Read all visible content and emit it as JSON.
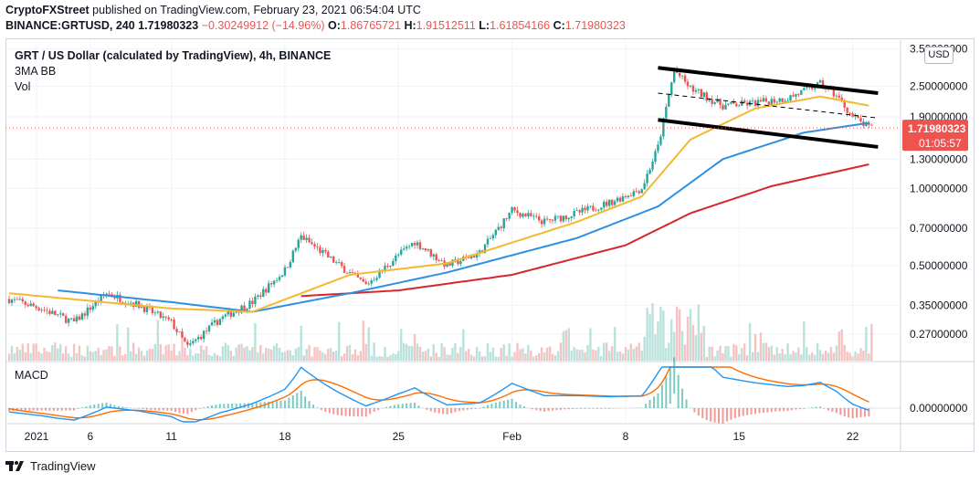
{
  "header": {
    "publisher": "CryptoFXStreet",
    "published_text": "published on TradingView.com, February 23, 2021 06:54:04 UTC"
  },
  "ohlc": {
    "symbol_line": "BINANCE:GRTUSD, 240",
    "last": "1.71980323",
    "change": "−0.30249912 (−14.96%)",
    "o_label": "O:",
    "o": "1.86765721",
    "h_label": "H:",
    "h": "1.91512511",
    "l_label": "L:",
    "l": "1.61854166",
    "c_label": "C:",
    "c": "1.71980323"
  },
  "legend": {
    "title": "GRT / US Dollar (calculated by TradingView), 4h, BINANCE",
    "indicators": "3MA BB",
    "volume": "Vol",
    "macd": "MACD"
  },
  "currency_button": "USD",
  "footer": {
    "brand": "TradingView"
  },
  "colors": {
    "up": "#26a69a",
    "down": "#ef5350",
    "ma_fast": "#f5b82e",
    "ma_mid": "#2f8fe3",
    "ma_slow": "#d8262e",
    "channel": "#000000",
    "macd_line": "#2196f3",
    "signal_line": "#ff6d00"
  },
  "chart_data": {
    "type": "candlestick",
    "price_scale": "log",
    "x_ticks": [
      "2021",
      "6",
      "11",
      "18",
      "25",
      "Feb",
      "8",
      "15",
      "22"
    ],
    "y_ticks": [
      "3.50000000",
      "2.50000000",
      "1.90000000",
      "1.30000000",
      "1.00000000",
      "0.70000000",
      "0.50000000",
      "0.35000000",
      "0.27000000"
    ],
    "y_values": [
      3.5,
      2.5,
      1.9,
      1.3,
      1.0,
      0.7,
      0.5,
      0.35,
      0.27
    ],
    "last_price_label": "1.71980323",
    "countdown_label": "01:05:57",
    "macd_ticks": [
      "0.00000000"
    ],
    "price_path": [
      [
        "2021-01-01",
        0.37
      ],
      [
        "2021-01-03",
        0.34
      ],
      [
        "2021-01-05",
        0.3
      ],
      [
        "2021-01-07",
        0.39
      ],
      [
        "2021-01-09",
        0.35
      ],
      [
        "2021-01-11",
        0.3
      ],
      [
        "2021-01-12",
        0.24
      ],
      [
        "2021-01-14",
        0.31
      ],
      [
        "2021-01-16",
        0.36
      ],
      [
        "2021-01-18",
        0.48
      ],
      [
        "2021-01-19",
        0.65
      ],
      [
        "2021-01-21",
        0.52
      ],
      [
        "2021-01-23",
        0.42
      ],
      [
        "2021-01-25",
        0.55
      ],
      [
        "2021-01-26",
        0.62
      ],
      [
        "2021-01-28",
        0.5
      ],
      [
        "2021-01-30",
        0.56
      ],
      [
        "2021-02-01",
        0.82
      ],
      [
        "2021-02-03",
        0.74
      ],
      [
        "2021-02-05",
        0.8
      ],
      [
        "2021-02-07",
        0.88
      ],
      [
        "2021-02-09",
        1.0
      ],
      [
        "2021-02-10",
        1.45
      ],
      [
        "2021-02-11",
        2.9
      ],
      [
        "2021-02-12",
        2.45
      ],
      [
        "2021-02-14",
        2.1
      ],
      [
        "2021-02-16",
        2.15
      ],
      [
        "2021-02-18",
        2.25
      ],
      [
        "2021-02-20",
        2.55
      ],
      [
        "2021-02-21",
        2.3
      ],
      [
        "2021-02-22",
        1.9
      ],
      [
        "2021-02-23",
        1.72
      ]
    ],
    "ma_fast_path": [
      [
        "2021-01-01",
        0.39
      ],
      [
        "2021-01-11",
        0.34
      ],
      [
        "2021-01-16",
        0.33
      ],
      [
        "2021-01-22",
        0.46
      ],
      [
        "2021-01-28",
        0.51
      ],
      [
        "2021-02-05",
        0.74
      ],
      [
        "2021-02-09",
        0.93
      ],
      [
        "2021-02-12",
        1.55
      ],
      [
        "2021-02-16",
        2.05
      ],
      [
        "2021-02-20",
        2.28
      ],
      [
        "2021-02-23",
        2.1
      ]
    ],
    "ma_mid_path": [
      [
        "2021-01-04",
        0.4
      ],
      [
        "2021-01-11",
        0.36
      ],
      [
        "2021-01-16",
        0.33
      ],
      [
        "2021-01-22",
        0.39
      ],
      [
        "2021-01-28",
        0.47
      ],
      [
        "2021-02-05",
        0.64
      ],
      [
        "2021-02-10",
        0.85
      ],
      [
        "2021-02-14",
        1.3
      ],
      [
        "2021-02-19",
        1.65
      ],
      [
        "2021-02-23",
        1.8
      ]
    ],
    "ma_slow_path": [
      [
        "2021-01-19",
        0.38
      ],
      [
        "2021-01-25",
        0.4
      ],
      [
        "2021-02-01",
        0.46
      ],
      [
        "2021-02-08",
        0.6
      ],
      [
        "2021-02-12",
        0.8
      ],
      [
        "2021-02-17",
        1.02
      ],
      [
        "2021-02-23",
        1.24
      ]
    ],
    "channel_upper": [
      [
        "2021-02-10",
        2.95
      ],
      [
        "2021-02-23",
        2.35
      ]
    ],
    "channel_lower": [
      [
        "2021-02-10",
        1.85
      ],
      [
        "2021-02-23",
        1.45
      ]
    ],
    "channel_mid": [
      [
        "2021-02-10",
        2.35
      ],
      [
        "2021-02-23",
        1.88
      ]
    ]
  }
}
